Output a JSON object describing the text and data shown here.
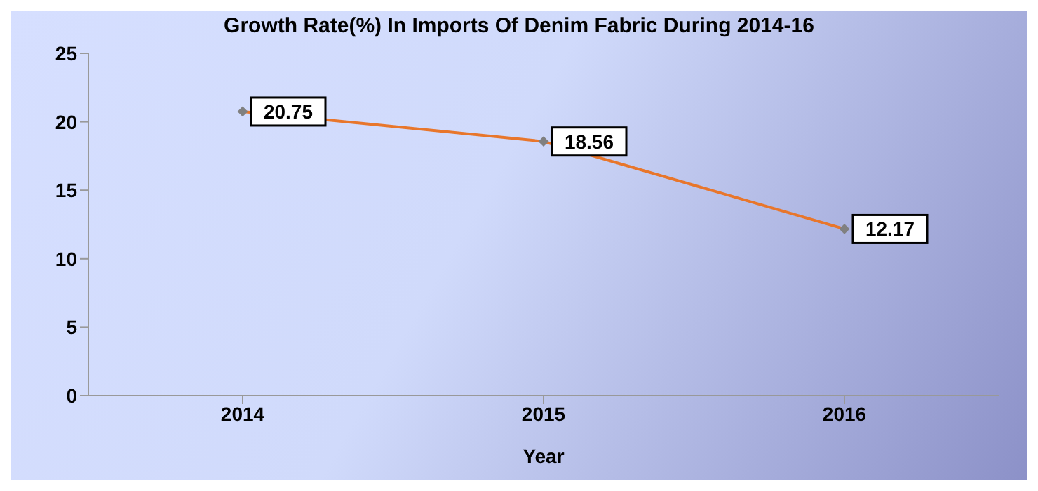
{
  "chart_data": {
    "type": "line",
    "title": "Growth Rate(%) In Imports Of Denim Fabric During 2014-16",
    "xlabel": "Year",
    "categories": [
      "2014",
      "2015",
      "2016"
    ],
    "series": [
      {
        "color": "#e8762b",
        "values": [
          20.75,
          18.56,
          12.17
        ]
      }
    ],
    "ylim": [
      0,
      25
    ],
    "yticks": [
      0,
      5,
      10,
      15,
      20,
      25
    ],
    "grid": false,
    "legend": false,
    "marker": "diamond",
    "data_labels": true
  }
}
